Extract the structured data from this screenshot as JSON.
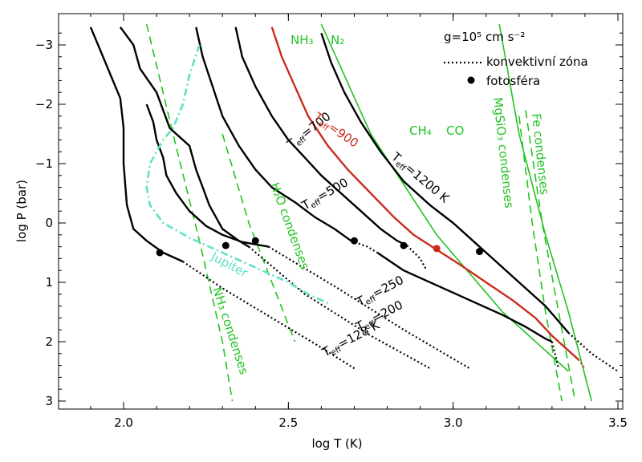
{
  "chart_data": {
    "type": "line",
    "xlabel": "log T (K)",
    "ylabel": "log P (bar)",
    "xlim": [
      1.8,
      3.5
    ],
    "ylim": [
      3.0,
      -3.35
    ],
    "y_inverted": true,
    "xticks": [
      2.0,
      2.5,
      3.0,
      3.5
    ],
    "xtick_labels": [
      "2.0",
      "2.5",
      "3.0",
      "3.5"
    ],
    "yticks": [
      -3,
      -2,
      -1,
      0,
      1,
      2,
      3
    ],
    "ytick_labels": [
      "−3",
      "−2",
      "−1",
      "0",
      "1",
      "2",
      "3"
    ],
    "legend": {
      "placement": "top-right",
      "entries": [
        "g=10⁵ cm s⁻²",
        "konvektivní zóna",
        "fotosféra"
      ]
    },
    "colors": {
      "profile": "#000000",
      "red": "#cc2a1e",
      "green": "#22c322",
      "jupiter": "#5fe0c8"
    },
    "series": [
      {
        "label_main": "T",
        "label_sub": "eff",
        "label_rest": "=128 K",
        "color": "#000000",
        "dash": "solid",
        "x": [
          1.9,
          1.93,
          1.96,
          1.99,
          2.0,
          2.0,
          2.01,
          2.03,
          2.07,
          2.12,
          2.18
        ],
        "y": [
          -3.3,
          -2.9,
          -2.5,
          -2.1,
          -1.6,
          -1.0,
          -0.3,
          0.1,
          0.3,
          0.5,
          0.65
        ],
        "conv_x": [
          2.18,
          2.3,
          2.45,
          2.6,
          2.7
        ],
        "conv_y": [
          0.65,
          1.1,
          1.6,
          2.1,
          2.45
        ],
        "photosphere": [
          2.11,
          0.5
        ]
      },
      {
        "label_main": "T",
        "label_sub": "eff",
        "label_rest": "=200",
        "color": "#000000",
        "dash": "solid",
        "x": [
          1.99,
          2.03,
          2.05,
          2.1,
          2.12,
          2.14,
          2.2,
          2.22,
          2.24,
          2.26,
          2.3,
          2.35,
          2.38
        ],
        "y": [
          -3.3,
          -3.0,
          -2.6,
          -2.2,
          -1.9,
          -1.6,
          -1.3,
          -0.9,
          -0.6,
          -0.3,
          0.1,
          0.3,
          0.4
        ],
        "conv_x": [
          2.38,
          2.55,
          2.75,
          2.93
        ],
        "conv_y": [
          0.4,
          1.2,
          1.9,
          2.45
        ],
        "photosphere": [
          2.31,
          0.38
        ]
      },
      {
        "label_main": "T",
        "label_sub": "eff",
        "label_rest": "=250",
        "color": "#000000",
        "dash": "solid",
        "x": [
          2.07,
          2.09,
          2.1,
          2.12,
          2.13,
          2.16,
          2.2,
          2.25,
          2.3,
          2.36,
          2.44
        ],
        "y": [
          -2.0,
          -1.7,
          -1.4,
          -1.1,
          -0.8,
          -0.5,
          -0.2,
          0.05,
          0.2,
          0.32,
          0.4
        ],
        "conv_x": [
          2.44,
          2.65,
          2.85,
          3.05
        ],
        "conv_y": [
          0.4,
          1.1,
          1.8,
          2.45
        ],
        "photosphere": [
          2.4,
          0.3
        ]
      },
      {
        "label_main": "T",
        "label_sub": "eff",
        "label_rest": "=500",
        "color": "#000000",
        "dash": "solid",
        "x": [
          2.22,
          2.24,
          2.27,
          2.3,
          2.35,
          2.4,
          2.45,
          2.52,
          2.58,
          2.64,
          2.69
        ],
        "y": [
          -3.3,
          -2.8,
          -2.3,
          -1.8,
          -1.3,
          -0.9,
          -0.6,
          -0.35,
          -0.1,
          0.1,
          0.3
        ],
        "conv_x": [
          2.69,
          2.74,
          2.77
        ],
        "conv_y": [
          0.3,
          0.4,
          0.5
        ],
        "x2": [
          2.77,
          2.85,
          2.95,
          3.05,
          3.15,
          3.22,
          3.28,
          3.3
        ],
        "y2": [
          0.5,
          0.8,
          1.05,
          1.3,
          1.55,
          1.75,
          1.95,
          2.0
        ],
        "conv2_x": [
          3.3,
          3.32
        ],
        "conv2_y": [
          2.0,
          2.45
        ],
        "photosphere": [
          2.7,
          0.3
        ]
      },
      {
        "label_main": "T",
        "label_sub": "eff",
        "label_rest": "=700",
        "color": "#000000",
        "dash": "solid",
        "x": [
          2.34,
          2.36,
          2.4,
          2.45,
          2.5,
          2.55,
          2.6,
          2.66,
          2.72,
          2.78,
          2.83,
          2.86
        ],
        "y": [
          -3.3,
          -2.8,
          -2.3,
          -1.8,
          -1.4,
          -1.1,
          -0.8,
          -0.5,
          -0.2,
          0.1,
          0.3,
          0.38
        ],
        "conv_x": [
          2.86,
          2.9,
          2.92
        ],
        "conv_y": [
          0.38,
          0.6,
          0.8
        ],
        "photosphere": [
          2.85,
          0.38
        ]
      },
      {
        "label_main": "T",
        "label_sub": "eff",
        "label_rest": "=900",
        "color": "#cc2a1e",
        "dash": "solid",
        "x": [
          2.45,
          2.48,
          2.52,
          2.56,
          2.62,
          2.68,
          2.75,
          2.82,
          2.88,
          2.95,
          3.02,
          3.1,
          3.18,
          3.25,
          3.3,
          3.38
        ],
        "y": [
          -3.3,
          -2.8,
          -2.3,
          -1.8,
          -1.3,
          -0.9,
          -0.5,
          -0.1,
          0.2,
          0.45,
          0.7,
          1.0,
          1.3,
          1.6,
          1.9,
          2.3
        ],
        "conv_x": [
          3.38,
          3.4
        ],
        "conv_y": [
          2.3,
          2.45
        ],
        "photosphere": [
          2.95,
          0.43
        ]
      },
      {
        "label_main": "T",
        "label_sub": "eff",
        "label_rest": "=1200 K",
        "color": "#000000",
        "dash": "solid",
        "x": [
          2.6,
          2.63,
          2.67,
          2.72,
          2.78,
          2.85,
          2.93,
          3.0,
          3.06,
          3.12,
          3.2,
          3.28,
          3.35
        ],
        "y": [
          -3.2,
          -2.7,
          -2.2,
          -1.7,
          -1.2,
          -0.7,
          -0.3,
          0.0,
          0.3,
          0.6,
          1.0,
          1.4,
          1.85
        ],
        "conv_x": [
          3.35,
          3.42,
          3.5
        ],
        "conv_y": [
          1.85,
          2.2,
          2.5
        ],
        "photosphere": [
          3.08,
          0.48
        ]
      },
      {
        "label_main": "Jupiter",
        "label_sub": "",
        "label_rest": "",
        "color": "#5fe0c8",
        "dash": "dashdot",
        "x": [
          2.23,
          2.2,
          2.18,
          2.15,
          2.12,
          2.08,
          2.07,
          2.08,
          2.12,
          2.2,
          2.3,
          2.4,
          2.5,
          2.56,
          2.62
        ],
        "y": [
          -3.0,
          -2.5,
          -2.0,
          -1.6,
          -1.4,
          -1.0,
          -0.6,
          -0.3,
          0.0,
          0.25,
          0.5,
          0.75,
          1.0,
          1.2,
          1.35
        ],
        "photosphere": null
      }
    ],
    "condensation_curves": [
      {
        "label": "NH₃ condenses",
        "color": "#22c322",
        "dash": "dashed",
        "x": [
          2.07,
          2.15,
          2.23,
          2.3,
          2.33
        ],
        "y": [
          -3.35,
          -1.5,
          0.3,
          2.0,
          3.0
        ]
      },
      {
        "label": "H₂O condenses",
        "color": "#22c322",
        "dash": "dashed",
        "x": [
          2.3,
          2.38,
          2.45,
          2.52
        ],
        "y": [
          -1.5,
          0.0,
          1.0,
          2.0
        ]
      },
      {
        "label": "MgSiO₃ condenses",
        "color": "#22c322",
        "dash": "dashed",
        "x": [
          3.2,
          3.24,
          3.28,
          3.33
        ],
        "y": [
          -1.8,
          0.0,
          1.5,
          3.0
        ]
      },
      {
        "label": "Fe condenses",
        "color": "#22c322",
        "dash": "dashed",
        "x": [
          3.22,
          3.27,
          3.32,
          3.37
        ],
        "y": [
          -1.9,
          0.0,
          1.5,
          3.0
        ]
      },
      {
        "label": "NH₃ N₂",
        "color": "#22c322",
        "dash": "solid",
        "x": [
          2.6,
          2.75,
          2.95,
          3.15,
          3.35
        ],
        "y": [
          -3.35,
          -1.5,
          0.2,
          1.5,
          2.5
        ]
      },
      {
        "label": "CH₄ CO",
        "color": "#22c322",
        "dash": "solid",
        "x": [
          3.14,
          3.2,
          3.28,
          3.35,
          3.42
        ],
        "y": [
          -3.35,
          -1.5,
          0.2,
          1.5,
          3.0
        ]
      }
    ],
    "annotations": [
      "NH₃",
      "N₂",
      "CH₄",
      "CO",
      "MgSiO₃ condenses",
      "Fe condenses",
      "H₂O condenses",
      "NH₃ condenses",
      "Jupiter"
    ]
  }
}
